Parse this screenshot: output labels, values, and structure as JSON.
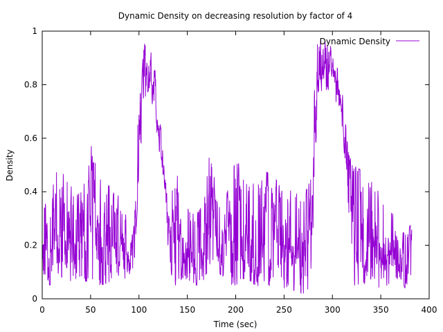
{
  "chart_data": {
    "type": "line",
    "title": "Dynamic Density on decreasing resolution by factor of 4",
    "xlabel": "Time (sec)",
    "ylabel": "Density",
    "xlim": [
      0,
      400
    ],
    "ylim": [
      0,
      1
    ],
    "xticks": [
      0,
      50,
      100,
      150,
      200,
      250,
      300,
      350,
      400
    ],
    "yticks": [
      0,
      0.2,
      0.4,
      0.6,
      0.8,
      1
    ],
    "ytick_labels": [
      "0",
      "0.2",
      "0.4",
      "0.6",
      "0.8",
      "1"
    ],
    "grid": false,
    "legend_position": "top-right",
    "series": [
      {
        "name": "Dynamic Density",
        "color": "#9400d3",
        "x_range": [
          0,
          382
        ],
        "x_step": 0.25,
        "envelope": {
          "x": [
            0,
            10,
            20,
            30,
            40,
            50,
            60,
            70,
            80,
            90,
            95,
            100,
            105,
            110,
            115,
            120,
            125,
            130,
            135,
            140,
            145,
            150,
            160,
            170,
            175,
            180,
            190,
            200,
            210,
            220,
            230,
            240,
            250,
            260,
            270,
            278,
            282,
            285,
            290,
            300,
            305,
            310,
            315,
            320,
            330,
            340,
            345,
            350,
            360,
            370,
            375,
            382
          ],
          "low": [
            0.06,
            0.05,
            0.08,
            0.05,
            0.06,
            0.07,
            0.05,
            0.06,
            0.08,
            0.07,
            0.12,
            0.45,
            0.74,
            0.78,
            0.7,
            0.58,
            0.45,
            0.2,
            0.05,
            0.05,
            0.08,
            0.07,
            0.05,
            0.08,
            0.15,
            0.12,
            0.05,
            0.05,
            0.08,
            0.05,
            0.04,
            0.05,
            0.04,
            0.03,
            0.02,
            0.03,
            0.5,
            0.75,
            0.78,
            0.78,
            0.72,
            0.62,
            0.45,
            0.05,
            0.05,
            0.05,
            0.04,
            0.03,
            0.06,
            0.08,
            0.04,
            0.05
          ],
          "high": [
            0.35,
            0.45,
            0.5,
            0.42,
            0.45,
            0.58,
            0.45,
            0.42,
            0.38,
            0.32,
            0.45,
            0.9,
            0.96,
            0.95,
            0.9,
            0.75,
            0.55,
            0.4,
            0.42,
            0.48,
            0.25,
            0.35,
            0.3,
            0.55,
            0.57,
            0.38,
            0.38,
            0.52,
            0.48,
            0.42,
            0.48,
            0.45,
            0.42,
            0.4,
            0.38,
            0.45,
            0.9,
            0.97,
            0.96,
            0.94,
            0.88,
            0.8,
            0.6,
            0.5,
            0.48,
            0.45,
            0.47,
            0.42,
            0.35,
            0.28,
            0.25,
            0.28
          ]
        }
      }
    ]
  }
}
